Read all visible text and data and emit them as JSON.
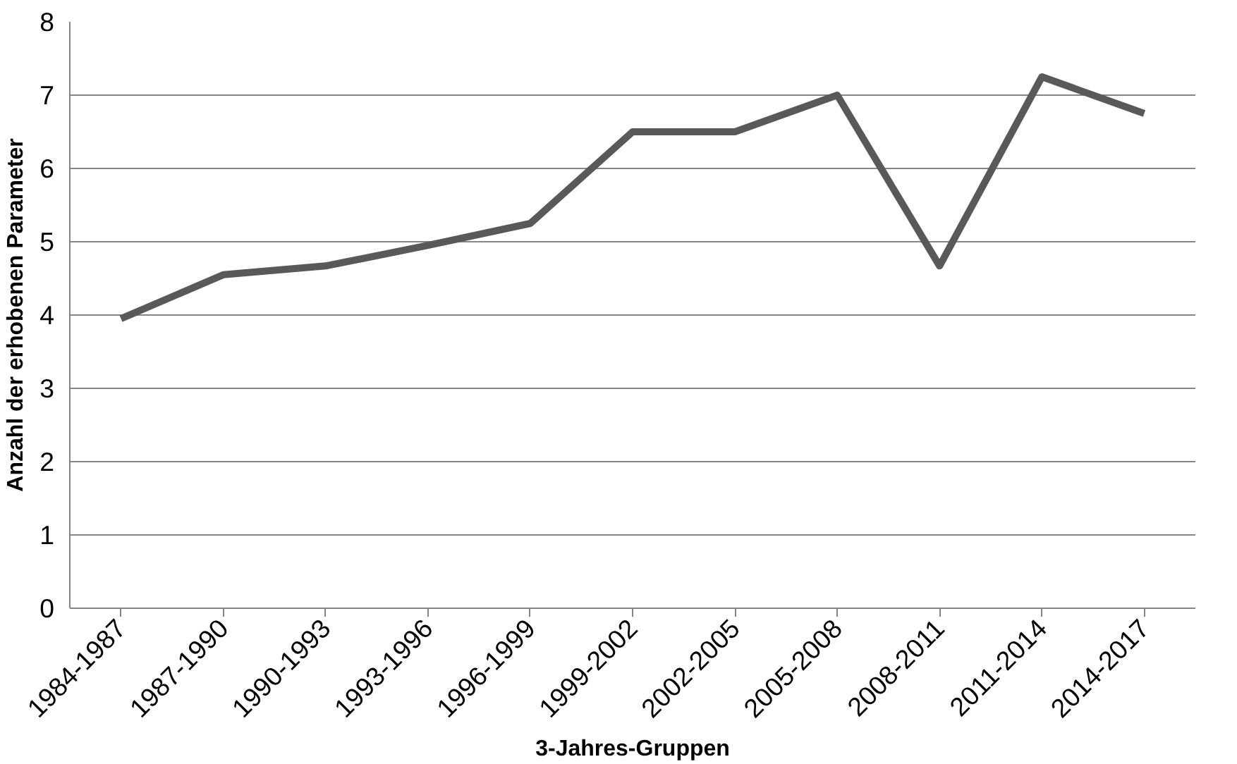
{
  "chart_data": {
    "type": "line",
    "xlabel": "3-Jahres-Gruppen",
    "ylabel": "Anzahl der erhobenen Parameter",
    "categories": [
      "1984-1987",
      "1987-1990",
      "1990-1993",
      "1993-1996",
      "1996-1999",
      "1999-2002",
      "2002-2005",
      "2005-2008",
      "2008-2011",
      "2011-2014",
      "2014-2017"
    ],
    "series": [
      {
        "color": "#595959",
        "values": [
          3.95,
          4.55,
          4.67,
          4.95,
          5.25,
          6.5,
          6.5,
          7.0,
          4.67,
          7.25,
          6.75
        ]
      }
    ],
    "ylim": [
      0,
      8
    ],
    "yticks": [
      0,
      1,
      2,
      3,
      4,
      5,
      6,
      7,
      8
    ],
    "grid": "y",
    "marker": "none",
    "line_style": "solid"
  }
}
